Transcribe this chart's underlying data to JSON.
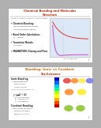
{
  "slide1": {
    "bg": "#ffffff",
    "title": "Chemical Bonding and Molecular",
    "title2": "Structure",
    "title_color": "#cc2200",
    "subtitle": "MOLECULAR ORBITAL THEORY OF CHEMICAL BONDS",
    "subtitle_color": "#444444",
    "bullets": [
      "Chemical Bonding:",
      "Bonding and antibonding MO",
      "valence vs sigma bonding",
      "Bond Order Calculation:",
      "N = (2p-2a)",
      "Transition Metals:",
      "d-orbitals",
      "MAGNETISM: Diamag and Para"
    ],
    "bullet_bold": [
      true,
      false,
      false,
      true,
      false,
      true,
      false,
      true
    ],
    "graph_bg": "#dce8f5",
    "line_bond_color": "#cc44cc",
    "line_anti_color": "#dd3333"
  },
  "slide2": {
    "bg": "#ffffff",
    "title": "Bonding: Ionic vs Covalent",
    "title_color": "#cc6600",
    "subtitle": "Two Extremes",
    "subtitle_color": "#cc2200",
    "section1": "Ionic Bonding",
    "section2": "Covalent Bonding",
    "spectrum_colors": [
      "#0000cc",
      "#0066ff",
      "#00ccff",
      "#00ff88",
      "#aaff00",
      "#ffff00",
      "#ffaa00",
      "#ff4400",
      "#cc0000"
    ],
    "ball_row1_colors": [
      "#ee5555",
      "#ff9944",
      "#ffee55",
      "#8888ee"
    ],
    "ball_row1_sizes": [
      0.04,
      0.038,
      0.036,
      0.04
    ],
    "ball_row2_colors": [
      "#ff9944",
      "#ffee44"
    ],
    "ball_row2_sizes": [
      0.048,
      0.048
    ],
    "ball_row3_colors": [
      "#99cc44",
      "#99cc44"
    ],
    "ball_row3_sizes": [
      0.048,
      0.048
    ]
  },
  "outer_bg": "#b0b0b0",
  "page_num": "1"
}
